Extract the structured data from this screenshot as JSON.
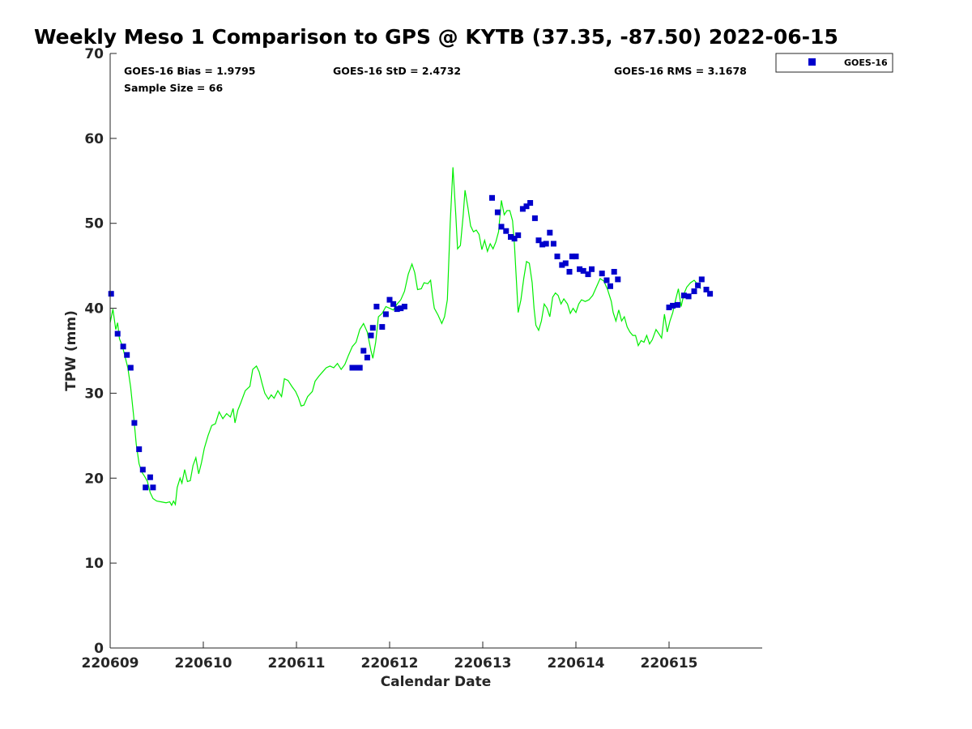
{
  "chart_data": {
    "type": "line",
    "title": "Weekly Meso 1 Comparison to GPS @ KYTB (37.35, -87.50) 2022-06-15",
    "xlabel": "Calendar Date",
    "ylabel": "TPW (mm)",
    "xlim": [
      0,
      7
    ],
    "ylim": [
      0,
      70
    ],
    "xticks": [
      0,
      1,
      2,
      3,
      4,
      5,
      6
    ],
    "xtick_labels": [
      "220609",
      "220610",
      "220611",
      "220612",
      "220613",
      "220614",
      "220615"
    ],
    "yticks": [
      0,
      10,
      20,
      30,
      40,
      50,
      60,
      70
    ],
    "ytick_labels": [
      "0",
      "10",
      "20",
      "30",
      "40",
      "50",
      "60",
      "70"
    ],
    "grid": false,
    "legend_position": "outside-top-right",
    "stats": {
      "bias": "GOES-16 Bias = 1.9795",
      "sample": "Sample Size = 66",
      "std": "GOES-16 StD = 2.4732",
      "rms": "GOES-16 RMS = 3.1678"
    },
    "gps_line": {
      "color": "#00ee00",
      "points": [
        [
          0.0,
          38.3
        ],
        [
          0.03,
          39.9
        ],
        [
          0.06,
          37.5
        ],
        [
          0.08,
          38.3
        ],
        [
          0.1,
          36.4
        ],
        [
          0.13,
          35.6
        ],
        [
          0.16,
          34.3
        ],
        [
          0.19,
          33.0
        ],
        [
          0.22,
          30.7
        ],
        [
          0.25,
          27.5
        ],
        [
          0.28,
          24.0
        ],
        [
          0.31,
          21.7
        ],
        [
          0.34,
          20.7
        ],
        [
          0.37,
          20.2
        ],
        [
          0.4,
          19.6
        ],
        [
          0.43,
          18.3
        ],
        [
          0.46,
          17.6
        ],
        [
          0.5,
          17.3
        ],
        [
          0.55,
          17.2
        ],
        [
          0.6,
          17.1
        ],
        [
          0.64,
          17.2
        ],
        [
          0.66,
          16.8
        ],
        [
          0.68,
          17.3
        ],
        [
          0.7,
          16.9
        ],
        [
          0.72,
          18.9
        ],
        [
          0.75,
          20.0
        ],
        [
          0.77,
          19.4
        ],
        [
          0.8,
          21.0
        ],
        [
          0.83,
          19.6
        ],
        [
          0.86,
          19.7
        ],
        [
          0.89,
          21.5
        ],
        [
          0.92,
          22.4
        ],
        [
          0.95,
          20.5
        ],
        [
          0.98,
          21.8
        ],
        [
          1.01,
          23.5
        ],
        [
          1.05,
          25.0
        ],
        [
          1.09,
          26.2
        ],
        [
          1.13,
          26.4
        ],
        [
          1.17,
          27.8
        ],
        [
          1.21,
          27.0
        ],
        [
          1.25,
          27.6
        ],
        [
          1.29,
          27.2
        ],
        [
          1.32,
          28.2
        ],
        [
          1.34,
          26.5
        ],
        [
          1.37,
          28.0
        ],
        [
          1.4,
          28.8
        ],
        [
          1.45,
          30.3
        ],
        [
          1.5,
          30.8
        ],
        [
          1.53,
          32.8
        ],
        [
          1.57,
          33.2
        ],
        [
          1.6,
          32.5
        ],
        [
          1.63,
          31.2
        ],
        [
          1.66,
          30.0
        ],
        [
          1.7,
          29.3
        ],
        [
          1.73,
          29.8
        ],
        [
          1.76,
          29.4
        ],
        [
          1.8,
          30.3
        ],
        [
          1.84,
          29.6
        ],
        [
          1.87,
          31.7
        ],
        [
          1.91,
          31.5
        ],
        [
          1.95,
          30.8
        ],
        [
          1.99,
          30.2
        ],
        [
          2.02,
          29.5
        ],
        [
          2.05,
          28.5
        ],
        [
          2.08,
          28.6
        ],
        [
          2.12,
          29.6
        ],
        [
          2.17,
          30.2
        ],
        [
          2.2,
          31.4
        ],
        [
          2.24,
          32.0
        ],
        [
          2.28,
          32.5
        ],
        [
          2.32,
          33.0
        ],
        [
          2.36,
          33.2
        ],
        [
          2.4,
          33.0
        ],
        [
          2.44,
          33.5
        ],
        [
          2.48,
          32.8
        ],
        [
          2.52,
          33.4
        ],
        [
          2.56,
          34.5
        ],
        [
          2.6,
          35.5
        ],
        [
          2.64,
          36.0
        ],
        [
          2.68,
          37.5
        ],
        [
          2.72,
          38.2
        ],
        [
          2.76,
          37.2
        ],
        [
          2.8,
          35.0
        ],
        [
          2.82,
          34.1
        ],
        [
          2.85,
          36.0
        ],
        [
          2.88,
          39.0
        ],
        [
          2.92,
          39.4
        ],
        [
          2.96,
          40.2
        ],
        [
          3.0,
          40.0
        ],
        [
          3.04,
          39.8
        ],
        [
          3.08,
          40.5
        ],
        [
          3.12,
          41.0
        ],
        [
          3.16,
          42.0
        ],
        [
          3.2,
          44.0
        ],
        [
          3.24,
          45.2
        ],
        [
          3.27,
          44.2
        ],
        [
          3.3,
          42.2
        ],
        [
          3.34,
          42.3
        ],
        [
          3.37,
          43.0
        ],
        [
          3.41,
          42.9
        ],
        [
          3.44,
          43.3
        ],
        [
          3.46,
          41.5
        ],
        [
          3.48,
          40.0
        ],
        [
          3.52,
          39.2
        ],
        [
          3.56,
          38.2
        ],
        [
          3.59,
          39.0
        ],
        [
          3.62,
          41.0
        ],
        [
          3.65,
          50.0
        ],
        [
          3.68,
          56.6
        ],
        [
          3.71,
          51.0
        ],
        [
          3.73,
          47.0
        ],
        [
          3.76,
          47.4
        ],
        [
          3.79,
          51.0
        ],
        [
          3.81,
          53.9
        ],
        [
          3.84,
          51.9
        ],
        [
          3.87,
          49.7
        ],
        [
          3.9,
          49.0
        ],
        [
          3.93,
          49.2
        ],
        [
          3.96,
          48.7
        ],
        [
          3.99,
          46.9
        ],
        [
          4.02,
          48.0
        ],
        [
          4.05,
          46.7
        ],
        [
          4.08,
          47.6
        ],
        [
          4.11,
          47.0
        ],
        [
          4.14,
          47.8
        ],
        [
          4.17,
          49.0
        ],
        [
          4.2,
          52.7
        ],
        [
          4.23,
          51.0
        ],
        [
          4.26,
          51.5
        ],
        [
          4.29,
          51.5
        ],
        [
          4.32,
          50.3
        ],
        [
          4.34,
          47.5
        ],
        [
          4.36,
          43.5
        ],
        [
          4.38,
          39.5
        ],
        [
          4.41,
          41.0
        ],
        [
          4.44,
          43.5
        ],
        [
          4.47,
          45.5
        ],
        [
          4.5,
          45.3
        ],
        [
          4.53,
          43.0
        ],
        [
          4.55,
          40.0
        ],
        [
          4.57,
          38.0
        ],
        [
          4.6,
          37.4
        ],
        [
          4.63,
          38.5
        ],
        [
          4.66,
          40.5
        ],
        [
          4.69,
          40.0
        ],
        [
          4.72,
          39.0
        ],
        [
          4.75,
          41.3
        ],
        [
          4.78,
          41.8
        ],
        [
          4.81,
          41.5
        ],
        [
          4.84,
          40.5
        ],
        [
          4.87,
          41.1
        ],
        [
          4.91,
          40.5
        ],
        [
          4.94,
          39.4
        ],
        [
          4.97,
          40.0
        ],
        [
          5.0,
          39.5
        ],
        [
          5.03,
          40.5
        ],
        [
          5.06,
          41.0
        ],
        [
          5.1,
          40.8
        ],
        [
          5.14,
          41.0
        ],
        [
          5.18,
          41.5
        ],
        [
          5.22,
          42.5
        ],
        [
          5.26,
          43.5
        ],
        [
          5.3,
          43.2
        ],
        [
          5.34,
          42.2
        ],
        [
          5.38,
          40.8
        ],
        [
          5.4,
          39.5
        ],
        [
          5.43,
          38.5
        ],
        [
          5.46,
          39.8
        ],
        [
          5.49,
          38.5
        ],
        [
          5.52,
          39.0
        ],
        [
          5.55,
          37.8
        ],
        [
          5.58,
          37.2
        ],
        [
          5.61,
          36.8
        ],
        [
          5.64,
          36.8
        ],
        [
          5.67,
          35.6
        ],
        [
          5.7,
          36.2
        ],
        [
          5.73,
          36.0
        ],
        [
          5.76,
          36.8
        ],
        [
          5.79,
          35.8
        ],
        [
          5.82,
          36.3
        ],
        [
          5.86,
          37.5
        ],
        [
          5.89,
          37.0
        ],
        [
          5.92,
          36.5
        ],
        [
          5.95,
          39.3
        ],
        [
          5.98,
          37.2
        ],
        [
          6.01,
          38.5
        ],
        [
          6.04,
          39.5
        ],
        [
          6.07,
          41.0
        ],
        [
          6.1,
          42.3
        ],
        [
          6.13,
          40.2
        ],
        [
          6.16,
          41.7
        ],
        [
          6.19,
          42.5
        ],
        [
          6.23,
          43.0
        ],
        [
          6.27,
          43.3
        ],
        [
          6.31,
          42.8
        ],
        [
          6.34,
          42.3
        ]
      ]
    },
    "series": [
      {
        "name": "GOES-16",
        "color": "#0000cc",
        "marker": "square",
        "points": [
          [
            0.01,
            41.7
          ],
          [
            0.08,
            37.0
          ],
          [
            0.14,
            35.5
          ],
          [
            0.18,
            34.5
          ],
          [
            0.22,
            33.0
          ],
          [
            0.26,
            26.5
          ],
          [
            0.31,
            23.4
          ],
          [
            0.35,
            21.0
          ],
          [
            0.38,
            18.9
          ],
          [
            0.43,
            20.1
          ],
          [
            0.46,
            18.9
          ],
          [
            2.6,
            33.0
          ],
          [
            2.64,
            33.0
          ],
          [
            2.68,
            33.0
          ],
          [
            2.72,
            35.0
          ],
          [
            2.76,
            34.2
          ],
          [
            2.8,
            36.8
          ],
          [
            2.82,
            37.7
          ],
          [
            2.86,
            40.2
          ],
          [
            2.92,
            37.8
          ],
          [
            2.96,
            39.3
          ],
          [
            3.0,
            41.0
          ],
          [
            3.04,
            40.5
          ],
          [
            3.08,
            39.9
          ],
          [
            3.12,
            40.0
          ],
          [
            3.16,
            40.2
          ],
          [
            4.1,
            53.0
          ],
          [
            4.16,
            51.3
          ],
          [
            4.2,
            49.6
          ],
          [
            4.25,
            49.1
          ],
          [
            4.3,
            48.4
          ],
          [
            4.34,
            48.2
          ],
          [
            4.38,
            48.6
          ],
          [
            4.43,
            51.7
          ],
          [
            4.47,
            52.0
          ],
          [
            4.51,
            52.4
          ],
          [
            4.56,
            50.6
          ],
          [
            4.6,
            48.0
          ],
          [
            4.64,
            47.5
          ],
          [
            4.68,
            47.6
          ],
          [
            4.72,
            48.9
          ],
          [
            4.76,
            47.6
          ],
          [
            4.8,
            46.1
          ],
          [
            4.85,
            45.1
          ],
          [
            4.89,
            45.3
          ],
          [
            4.93,
            44.3
          ],
          [
            4.96,
            46.1
          ],
          [
            5.0,
            46.1
          ],
          [
            5.04,
            44.6
          ],
          [
            5.08,
            44.4
          ],
          [
            5.13,
            44.0
          ],
          [
            5.17,
            44.6
          ],
          [
            5.28,
            44.1
          ],
          [
            5.33,
            43.3
          ],
          [
            5.37,
            42.6
          ],
          [
            5.41,
            44.3
          ],
          [
            5.45,
            43.4
          ],
          [
            6.0,
            40.1
          ],
          [
            6.04,
            40.3
          ],
          [
            6.09,
            40.4
          ],
          [
            6.16,
            41.5
          ],
          [
            6.21,
            41.4
          ],
          [
            6.27,
            42.0
          ],
          [
            6.31,
            42.7
          ],
          [
            6.35,
            43.4
          ],
          [
            6.4,
            42.2
          ],
          [
            6.44,
            41.7
          ]
        ]
      }
    ]
  }
}
